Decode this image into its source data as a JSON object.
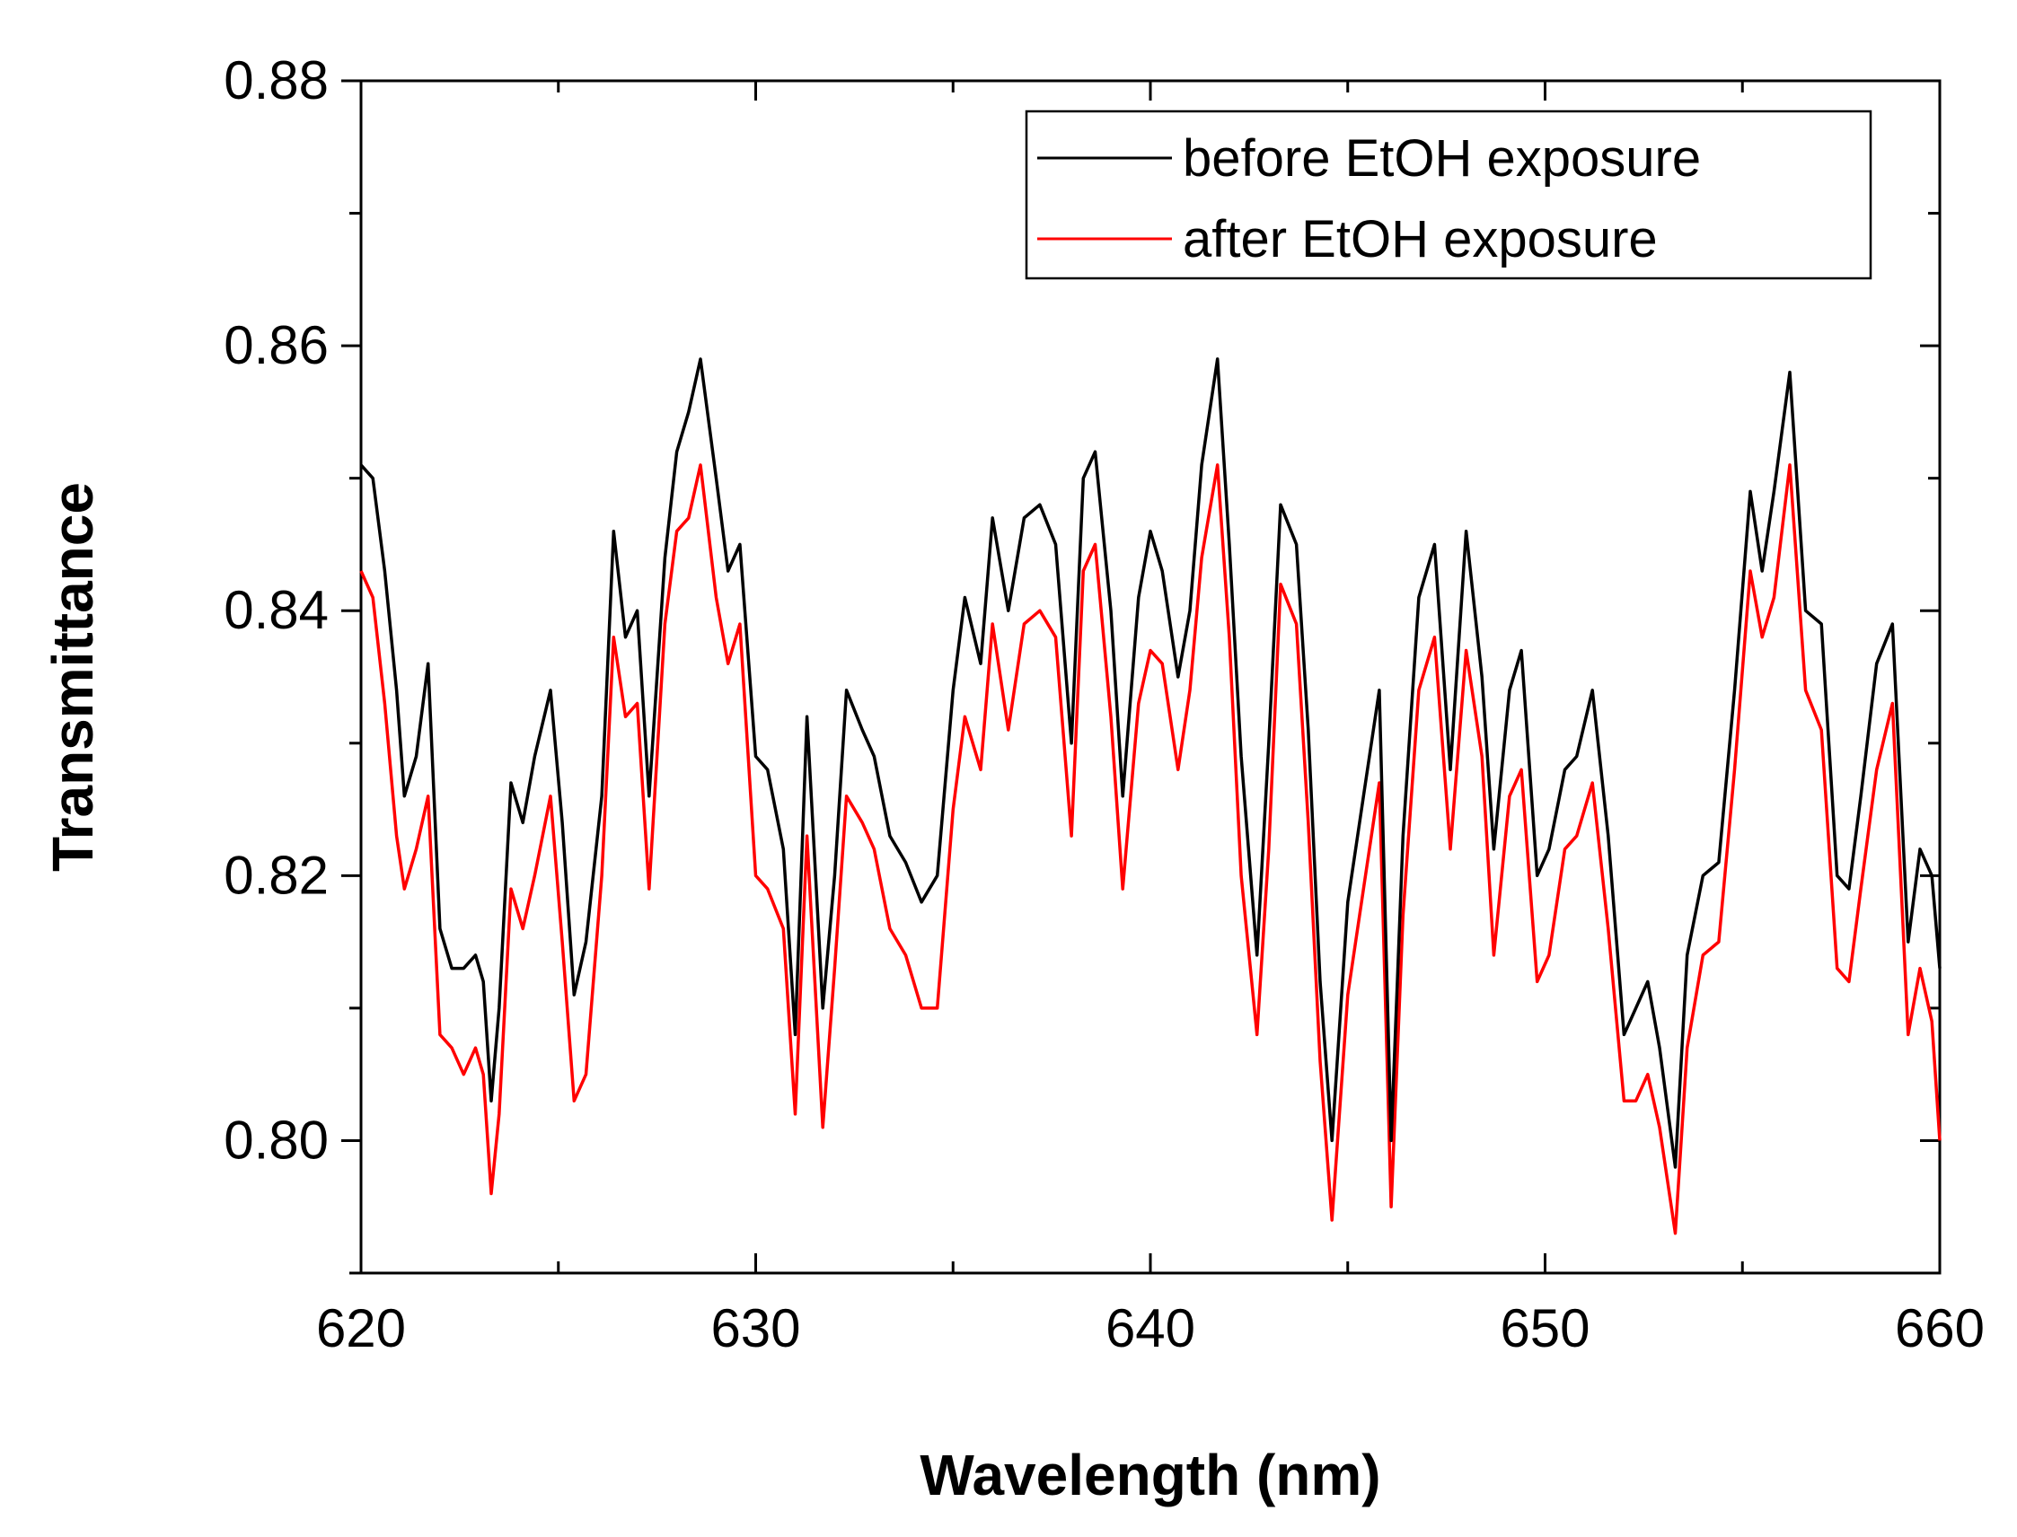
{
  "chart_data": {
    "type": "line",
    "title": "",
    "xlabel": "Wavelength (nm)",
    "ylabel": "Transmittance",
    "xlim": [
      620,
      660
    ],
    "ylim": [
      0.79,
      0.88
    ],
    "xticks": [
      620,
      630,
      640,
      650,
      660
    ],
    "xtick_labels": [
      "620",
      "630",
      "640",
      "650",
      "660"
    ],
    "yticks": [
      0.8,
      0.82,
      0.84,
      0.86,
      0.88
    ],
    "ytick_labels": [
      "0.80",
      "0.82",
      "0.84",
      "0.86",
      "0.88"
    ],
    "grid": false,
    "legend_position": "top-right",
    "series": [
      {
        "name": "before EtOH exposure",
        "color": "#000000",
        "x": [
          620,
          620.3,
          620.6,
          620.9,
          621.1,
          621.4,
          621.7,
          622,
          622.3,
          622.6,
          622.9,
          623.1,
          623.3,
          623.5,
          623.8,
          624.1,
          624.4,
          624.8,
          625.1,
          625.4,
          625.7,
          626.1,
          626.4,
          626.7,
          627,
          627.3,
          627.7,
          628,
          628.3,
          628.6,
          629,
          629.3,
          629.6,
          630,
          630.3,
          630.7,
          631,
          631.3,
          631.7,
          632,
          632.3,
          632.7,
          633,
          633.4,
          633.8,
          634.2,
          634.6,
          635,
          635.3,
          635.7,
          636,
          636.4,
          636.8,
          637.2,
          637.6,
          638,
          638.3,
          638.6,
          639,
          639.3,
          639.7,
          640,
          640.3,
          640.7,
          641,
          641.3,
          641.7,
          642,
          642.3,
          642.7,
          643,
          643.3,
          643.7,
          644,
          644.3,
          644.6,
          645,
          645.4,
          645.8,
          646.1,
          646.4,
          646.8,
          647.2,
          647.6,
          648,
          648.4,
          648.7,
          649.1,
          649.4,
          649.8,
          650.1,
          650.5,
          650.8,
          651.2,
          651.6,
          652,
          652.3,
          652.6,
          652.9,
          653.3,
          653.6,
          654,
          654.4,
          654.8,
          655.2,
          655.5,
          655.8,
          656.2,
          656.6,
          657,
          657.4,
          657.7,
          658,
          658.4,
          658.8,
          659.2,
          659.5,
          659.8,
          660
        ],
        "y": [
          0.851,
          0.85,
          0.843,
          0.834,
          0.826,
          0.829,
          0.836,
          0.816,
          0.813,
          0.813,
          0.814,
          0.812,
          0.803,
          0.81,
          0.827,
          0.824,
          0.829,
          0.834,
          0.824,
          0.811,
          0.815,
          0.826,
          0.846,
          0.838,
          0.84,
          0.826,
          0.844,
          0.852,
          0.855,
          0.859,
          0.85,
          0.843,
          0.845,
          0.829,
          0.828,
          0.822,
          0.808,
          0.832,
          0.81,
          0.82,
          0.834,
          0.831,
          0.829,
          0.823,
          0.821,
          0.818,
          0.82,
          0.834,
          0.841,
          0.836,
          0.847,
          0.84,
          0.847,
          0.848,
          0.845,
          0.83,
          0.85,
          0.852,
          0.84,
          0.826,
          0.841,
          0.846,
          0.843,
          0.835,
          0.84,
          0.851,
          0.859,
          0.845,
          0.829,
          0.814,
          0.83,
          0.848,
          0.845,
          0.831,
          0.812,
          0.8,
          0.818,
          0.826,
          0.834,
          0.8,
          0.823,
          0.841,
          0.845,
          0.828,
          0.846,
          0.835,
          0.822,
          0.834,
          0.837,
          0.82,
          0.822,
          0.828,
          0.829,
          0.834,
          0.823,
          0.808,
          0.81,
          0.812,
          0.807,
          0.798,
          0.814,
          0.82,
          0.821,
          0.834,
          0.849,
          0.843,
          0.849,
          0.858,
          0.84,
          0.839,
          0.82,
          0.819,
          0.826,
          0.836,
          0.839,
          0.815,
          0.822,
          0.82,
          0.813
        ]
      },
      {
        "name": "after EtOH exposure",
        "color": "#ff0000",
        "x": [
          620,
          620.3,
          620.6,
          620.9,
          621.1,
          621.4,
          621.7,
          622,
          622.3,
          622.6,
          622.9,
          623.1,
          623.3,
          623.5,
          623.8,
          624.1,
          624.4,
          624.8,
          625.1,
          625.4,
          625.7,
          626.1,
          626.4,
          626.7,
          627,
          627.3,
          627.7,
          628,
          628.3,
          628.6,
          629,
          629.3,
          629.6,
          630,
          630.3,
          630.7,
          631,
          631.3,
          631.7,
          632,
          632.3,
          632.7,
          633,
          633.4,
          633.8,
          634.2,
          634.6,
          635,
          635.3,
          635.7,
          636,
          636.4,
          636.8,
          637.2,
          637.6,
          638,
          638.3,
          638.6,
          639,
          639.3,
          639.7,
          640,
          640.3,
          640.7,
          641,
          641.3,
          641.7,
          642,
          642.3,
          642.7,
          643,
          643.3,
          643.7,
          644,
          644.3,
          644.6,
          645,
          645.4,
          645.8,
          646.1,
          646.4,
          646.8,
          647.2,
          647.6,
          648,
          648.4,
          648.7,
          649.1,
          649.4,
          649.8,
          650.1,
          650.5,
          650.8,
          651.2,
          651.6,
          652,
          652.3,
          652.6,
          652.9,
          653.3,
          653.6,
          654,
          654.4,
          654.8,
          655.2,
          655.5,
          655.8,
          656.2,
          656.6,
          657,
          657.4,
          657.7,
          658,
          658.4,
          658.8,
          659.2,
          659.5,
          659.8,
          660
        ],
        "y": [
          0.843,
          0.841,
          0.833,
          0.823,
          0.819,
          0.822,
          0.826,
          0.808,
          0.807,
          0.805,
          0.807,
          0.805,
          0.796,
          0.802,
          0.819,
          0.816,
          0.82,
          0.826,
          0.815,
          0.803,
          0.805,
          0.82,
          0.838,
          0.832,
          0.833,
          0.819,
          0.839,
          0.846,
          0.847,
          0.851,
          0.841,
          0.836,
          0.839,
          0.82,
          0.819,
          0.816,
          0.802,
          0.823,
          0.801,
          0.813,
          0.826,
          0.824,
          0.822,
          0.816,
          0.814,
          0.81,
          0.81,
          0.825,
          0.832,
          0.828,
          0.839,
          0.831,
          0.839,
          0.84,
          0.838,
          0.823,
          0.843,
          0.845,
          0.832,
          0.819,
          0.833,
          0.837,
          0.836,
          0.828,
          0.834,
          0.844,
          0.851,
          0.838,
          0.82,
          0.808,
          0.822,
          0.842,
          0.839,
          0.824,
          0.806,
          0.794,
          0.811,
          0.819,
          0.827,
          0.795,
          0.817,
          0.834,
          0.838,
          0.822,
          0.837,
          0.829,
          0.814,
          0.826,
          0.828,
          0.812,
          0.814,
          0.822,
          0.823,
          0.827,
          0.816,
          0.803,
          0.803,
          0.805,
          0.801,
          0.793,
          0.807,
          0.814,
          0.815,
          0.828,
          0.843,
          0.838,
          0.841,
          0.851,
          0.834,
          0.831,
          0.813,
          0.812,
          0.819,
          0.828,
          0.833,
          0.808,
          0.813,
          0.809,
          0.8
        ]
      }
    ]
  }
}
